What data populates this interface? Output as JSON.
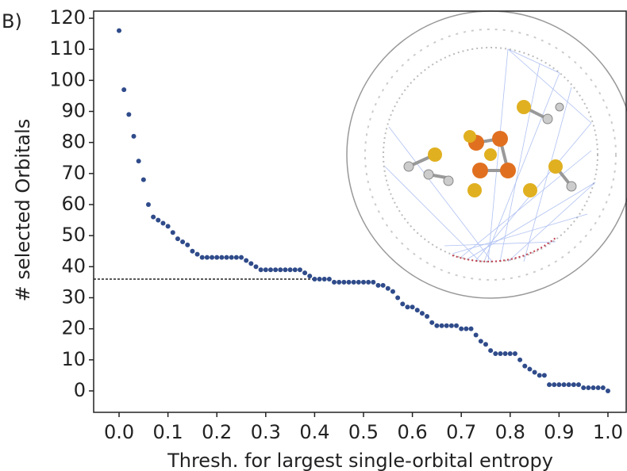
{
  "chart_data": {
    "type": "scatter",
    "panel_label": "B)",
    "xlabel": "Thresh. for largest single-orbital entropy",
    "ylabel": "# selected Orbitals",
    "color": "#2f4b8a",
    "xlim": [
      -0.052,
      1.039
    ],
    "ylim": [
      -6.9,
      122.3
    ],
    "xticks": [
      {
        "value": 0,
        "label": "0.0"
      },
      0.1,
      0.2,
      0.3,
      0.4,
      0.5,
      0.6,
      0.7,
      0.8,
      0.9,
      {
        "value": 1,
        "label": "1.0"
      }
    ],
    "yticks": [
      0,
      10,
      20,
      30,
      40,
      50,
      60,
      70,
      80,
      90,
      100,
      110,
      120
    ],
    "hline": {
      "y": 36,
      "xmax": 0.4
    },
    "x": [
      0,
      0.01,
      0.02,
      0.03,
      0.04,
      0.05,
      0.06,
      0.07,
      0.08,
      0.09,
      0.1,
      0.11,
      0.12,
      0.13,
      0.14,
      0.15,
      0.16,
      0.17,
      0.18,
      0.19,
      0.2,
      0.21,
      0.22,
      0.23,
      0.24,
      0.25,
      0.26,
      0.27,
      0.28,
      0.29,
      0.3,
      0.31,
      0.32,
      0.33,
      0.34,
      0.35,
      0.36,
      0.37,
      0.38,
      0.39,
      0.4,
      0.41,
      0.42,
      0.43,
      0.44,
      0.45,
      0.46,
      0.47,
      0.48,
      0.49,
      0.5,
      0.51,
      0.52,
      0.53,
      0.54,
      0.55,
      0.56,
      0.57,
      0.58,
      0.59,
      0.6,
      0.61,
      0.62,
      0.63,
      0.64,
      0.65,
      0.66,
      0.67,
      0.68,
      0.69,
      0.7,
      0.71,
      0.72,
      0.73,
      0.74,
      0.75,
      0.76,
      0.77,
      0.78,
      0.79,
      0.8,
      0.81,
      0.82,
      0.83,
      0.84,
      0.85,
      0.86,
      0.87,
      0.88,
      0.89,
      0.9,
      0.91,
      0.92,
      0.93,
      0.94,
      0.95,
      0.96,
      0.97,
      0.98,
      0.99,
      1
    ],
    "values": [
      116,
      97,
      89,
      82,
      74,
      68,
      60,
      56,
      55,
      54,
      53,
      51,
      49,
      48,
      47,
      45,
      44,
      43,
      43,
      43,
      43,
      43,
      43,
      43,
      43,
      43,
      42,
      41,
      40,
      39,
      39,
      39,
      39,
      39,
      39,
      39,
      39,
      39,
      38,
      37,
      36,
      36,
      36,
      36,
      35,
      35,
      35,
      35,
      35,
      35,
      35,
      35,
      35,
      34,
      34,
      33,
      32,
      30,
      28,
      27,
      27,
      26,
      25,
      24,
      22,
      21,
      21,
      21,
      21,
      21,
      20,
      20,
      20,
      18,
      16,
      15,
      13,
      12,
      12,
      12,
      12,
      12,
      10,
      8,
      7,
      6,
      5,
      5,
      2,
      2,
      2,
      2,
      2,
      2,
      2,
      1,
      1,
      1,
      1,
      1,
      0
    ]
  }
}
